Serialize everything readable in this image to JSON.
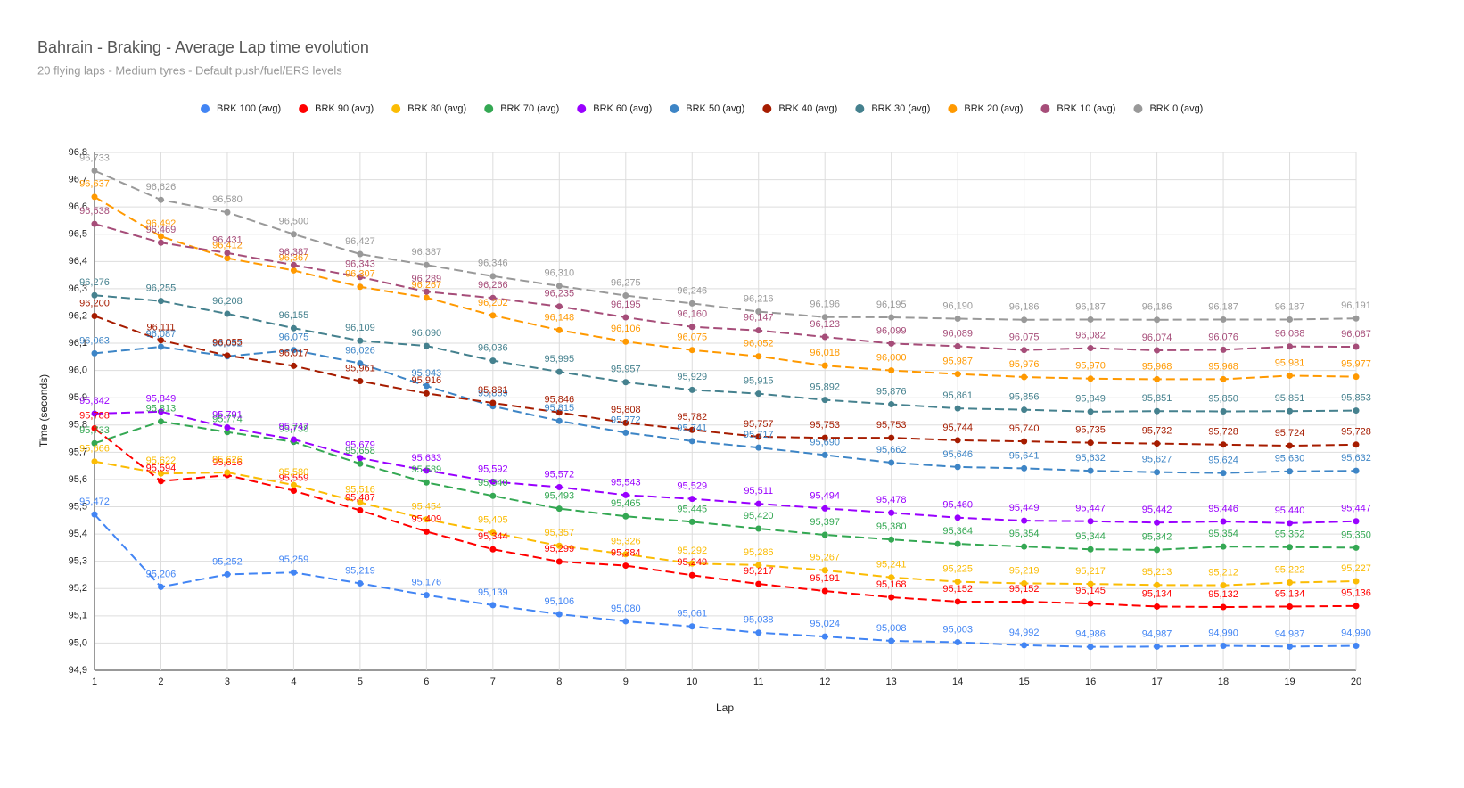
{
  "chart_data": {
    "type": "line",
    "title": "Bahrain - Braking - Average Lap time evolution",
    "subtitle": "20 flying laps - Medium tyres - Default push/fuel/ERS levels",
    "x_label": "Lap",
    "y_label": "Time (seconds)",
    "x": [
      1,
      2,
      3,
      4,
      5,
      6,
      7,
      8,
      9,
      10,
      11,
      12,
      13,
      14,
      15,
      16,
      17,
      18,
      19,
      20
    ],
    "xlim": [
      1,
      20
    ],
    "xticks": [
      1,
      2,
      3,
      4,
      5,
      6,
      7,
      8,
      9,
      10,
      11,
      12,
      13,
      14,
      15,
      16,
      17,
      18,
      19,
      20
    ],
    "ylim": [
      94.9,
      96.8
    ],
    "yticks": [
      {
        "value": 94.9,
        "label": "94,9"
      },
      {
        "value": 95.0,
        "label": "95,0"
      },
      {
        "value": 95.1,
        "label": "95,1"
      },
      {
        "value": 95.2,
        "label": "95,2"
      },
      {
        "value": 95.3,
        "label": "95,3"
      },
      {
        "value": 95.4,
        "label": "95,4"
      },
      {
        "value": 95.5,
        "label": "95,5"
      },
      {
        "value": 95.6,
        "label": "95,6"
      },
      {
        "value": 95.7,
        "label": "95,7"
      },
      {
        "value": 95.8,
        "label": "95,8"
      },
      {
        "value": 95.9,
        "label": "95,9"
      },
      {
        "value": 96.0,
        "label": "96,0"
      },
      {
        "value": 96.1,
        "label": "96,1"
      },
      {
        "value": 96.2,
        "label": "96,2"
      },
      {
        "value": 96.3,
        "label": "96,3"
      },
      {
        "value": 96.4,
        "label": "96,4"
      },
      {
        "value": 96.5,
        "label": "96,5"
      },
      {
        "value": 96.6,
        "label": "96,6"
      },
      {
        "value": 96.7,
        "label": "96,7"
      },
      {
        "value": 96.8,
        "label": "96,8"
      }
    ],
    "grid": true,
    "legend": "top",
    "series": [
      {
        "name": "BRK 100 (avg)",
        "color": "#4285f4",
        "values": [
          95.472,
          95.206,
          95.252,
          95.259,
          95.219,
          95.176,
          95.139,
          95.106,
          95.08,
          95.061,
          95.038,
          95.024,
          95.008,
          95.003,
          94.992,
          94.986,
          94.987,
          94.99,
          94.987,
          94.99
        ],
        "value_labels": [
          "95,472",
          "95,206",
          "95,252",
          "95,259",
          "95,219",
          "95,176",
          "95,139",
          "95,106",
          "95,080",
          "95,061",
          "95,038",
          "95,024",
          "95,008",
          "95,003",
          "94,992",
          "94,986",
          "94,987",
          "94,990",
          "94,987",
          "94,990"
        ]
      },
      {
        "name": "BRK 90 (avg)",
        "color": "#ff0000",
        "values": [
          95.788,
          95.594,
          95.616,
          95.559,
          95.487,
          95.409,
          95.344,
          95.299,
          95.284,
          95.249,
          95.217,
          95.191,
          95.168,
          95.152,
          95.152,
          95.145,
          95.134,
          95.132,
          95.134,
          95.136
        ],
        "value_labels": [
          "95,788",
          "95,594",
          "95,616",
          "95,559",
          "95,487",
          "95,409",
          "95,344",
          "95,299",
          "95,284",
          "95,249",
          "95,217",
          "95,191",
          "95,168",
          "95,152",
          "95,152",
          "95,145",
          "95,134",
          "95,132",
          "95,134",
          "95,136"
        ]
      },
      {
        "name": "BRK 80 (avg)",
        "color": "#fbbc04",
        "values": [
          95.666,
          95.622,
          95.626,
          95.58,
          95.516,
          95.454,
          95.405,
          95.357,
          95.326,
          95.292,
          95.286,
          95.267,
          95.241,
          95.225,
          95.219,
          95.217,
          95.213,
          95.212,
          95.222,
          95.227
        ],
        "value_labels": [
          "95,666",
          "95,622",
          "95,626",
          "95,580",
          "95,516",
          "95,454",
          "95,405",
          "95,357",
          "95,326",
          "95,292",
          "95,286",
          "95,267",
          "95,241",
          "95,225",
          "95,219",
          "95,217",
          "95,213",
          "95,212",
          "95,222",
          "95,227"
        ]
      },
      {
        "name": "BRK 70 (avg)",
        "color": "#34a853",
        "values": [
          95.733,
          95.813,
          95.774,
          95.738,
          95.658,
          95.589,
          95.54,
          95.493,
          95.465,
          95.445,
          95.42,
          95.397,
          95.38,
          95.364,
          95.354,
          95.344,
          95.342,
          95.354,
          95.352,
          95.35
        ],
        "value_labels": [
          "95,733",
          "95,813",
          "95,774",
          "95,738",
          "95,658",
          "95,589",
          "95,540",
          "95,493",
          "95,465",
          "95,445",
          "95,420",
          "95,397",
          "95,380",
          "95,364",
          "95,354",
          "95,344",
          "95,342",
          "95,354",
          "95,352",
          "95,350"
        ]
      },
      {
        "name": "BRK 60 (avg)",
        "color": "#9900ff",
        "values": [
          95.842,
          95.849,
          95.791,
          95.747,
          95.679,
          95.633,
          95.592,
          95.572,
          95.543,
          95.529,
          95.511,
          95.494,
          95.478,
          95.46,
          95.449,
          95.447,
          95.442,
          95.446,
          95.44,
          95.447
        ],
        "value_labels": [
          "95,842",
          "95,849",
          "95,791",
          "95,747",
          "95,679",
          "95,633",
          "95,592",
          "95,572",
          "95,543",
          "95,529",
          "95,511",
          "95,494",
          "95,478",
          "95,460",
          "95,449",
          "95,447",
          "95,442",
          "95,446",
          "95,440",
          "95,447"
        ]
      },
      {
        "name": "BRK 50 (avg)",
        "color": "#3d85c6",
        "values": [
          96.063,
          96.087,
          96.052,
          96.075,
          96.026,
          95.943,
          95.869,
          95.815,
          95.772,
          95.741,
          95.717,
          95.69,
          95.662,
          95.646,
          95.641,
          95.632,
          95.627,
          95.624,
          95.63,
          95.632
        ],
        "value_labels": [
          "96,063",
          "96,087",
          "96,052",
          "96,075",
          "96,026",
          "95,943",
          "95,869",
          "95,815",
          "95,772",
          "95,741",
          "95,717",
          "95,690",
          "95,662",
          "95,646",
          "95,641",
          "95,632",
          "95,627",
          "95,624",
          "95,630",
          "95,632"
        ]
      },
      {
        "name": "BRK 40 (avg)",
        "color": "#a61c00",
        "values": [
          96.2,
          96.111,
          96.055,
          96.017,
          95.961,
          95.916,
          95.881,
          95.846,
          95.808,
          95.782,
          95.757,
          95.753,
          95.753,
          95.744,
          95.74,
          95.735,
          95.732,
          95.728,
          95.724,
          95.728
        ],
        "value_labels": [
          "96,200",
          "96,111",
          "96,055",
          "96,017",
          "95,961",
          "95,916",
          "95,881",
          "95,846",
          "95,808",
          "95,782",
          "95,757",
          "95,753",
          "95,753",
          "95,744",
          "95,740",
          "95,735",
          "95,732",
          "95,728",
          "95,724",
          "95,728"
        ]
      },
      {
        "name": "BRK 30 (avg)",
        "color": "#45818e",
        "values": [
          96.276,
          96.255,
          96.208,
          96.155,
          96.109,
          96.09,
          96.036,
          95.995,
          95.957,
          95.929,
          95.915,
          95.892,
          95.876,
          95.861,
          95.856,
          95.849,
          95.851,
          95.85,
          95.851,
          95.853
        ],
        "value_labels": [
          "96,276",
          "96,255",
          "96,208",
          "96,155",
          "96,109",
          "96,090",
          "96,036",
          "95,995",
          "95,957",
          "95,929",
          "95,915",
          "95,892",
          "95,876",
          "95,861",
          "95,856",
          "95,849",
          "95,851",
          "95,850",
          "95,851",
          "95,853"
        ]
      },
      {
        "name": "BRK 20 (avg)",
        "color": "#ff9900",
        "values": [
          96.637,
          96.492,
          96.412,
          96.367,
          96.307,
          96.267,
          96.202,
          96.148,
          96.106,
          96.075,
          96.052,
          96.018,
          96.0,
          95.987,
          95.976,
          95.97,
          95.968,
          95.968,
          95.981,
          95.977
        ],
        "value_labels": [
          "96,637",
          "96,492",
          "96,412",
          "96,367",
          "96,307",
          "96,267",
          "96,202",
          "96,148",
          "96,106",
          "96,075",
          "96,052",
          "96,018",
          "96,000",
          "95,987",
          "95,976",
          "95,970",
          "95,968",
          "95,968",
          "95,981",
          "95,977"
        ]
      },
      {
        "name": "BRK 10 (avg)",
        "color": "#a64d79",
        "values": [
          96.538,
          96.469,
          96.431,
          96.387,
          96.343,
          96.289,
          96.266,
          96.235,
          96.195,
          96.16,
          96.147,
          96.123,
          96.099,
          96.089,
          96.075,
          96.082,
          96.074,
          96.076,
          96.088,
          96.087
        ],
        "value_labels": [
          "96,538",
          "96,469",
          "96,431",
          "96,387",
          "96,343",
          "96,289",
          "96,266",
          "96,235",
          "96,195",
          "96,160",
          "96,147",
          "96,123",
          "96,099",
          "96,089",
          "96,075",
          "96,082",
          "96,074",
          "96,076",
          "96,088",
          "96,087"
        ]
      },
      {
        "name": "BRK 0 (avg)",
        "color": "#999999",
        "values": [
          96.733,
          96.626,
          96.58,
          96.5,
          96.427,
          96.387,
          96.346,
          96.31,
          96.275,
          96.246,
          96.216,
          96.196,
          96.195,
          96.19,
          96.186,
          96.187,
          96.186,
          96.187,
          96.187,
          96.191
        ],
        "value_labels": [
          "96,733",
          "96,626",
          "96,580",
          "96,500",
          "96,427",
          "96,387",
          "96,346",
          "96,310",
          "96,275",
          "96,246",
          "96,216",
          "96,196",
          "96,195",
          "96,190",
          "96,186",
          "96,187",
          "96,186",
          "96,187",
          "96,187",
          "96,191"
        ]
      }
    ]
  }
}
